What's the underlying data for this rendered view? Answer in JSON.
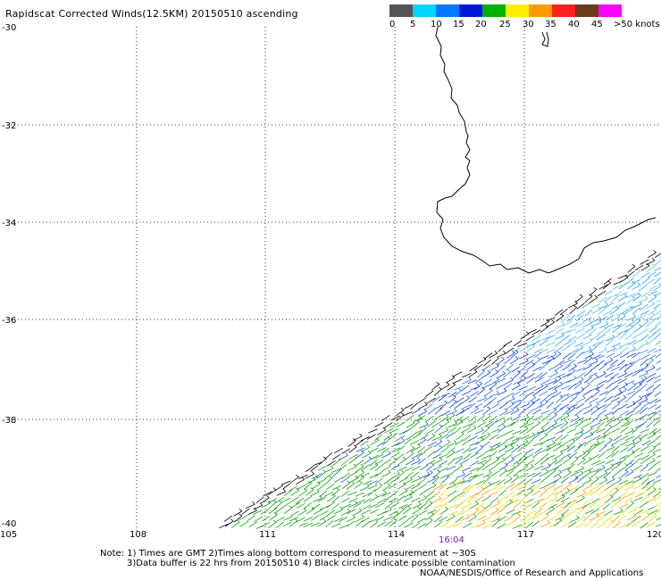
{
  "header": {
    "title": "Rapidscat Corrected Winds(12.5KM) 20150510 ascending"
  },
  "legend": {
    "labels": [
      "0",
      "5",
      "10",
      "15",
      "20",
      "25",
      "30",
      "35",
      "40",
      "45",
      ">50 knots"
    ],
    "colors": [
      "#555555",
      "#00d5ff",
      "#0077ff",
      "#0018d6",
      "#00b000",
      "#ffee00",
      "#ff9a00",
      "#ff2020",
      "#6b3a1a",
      "#ff00ff",
      "#8a00d8"
    ]
  },
  "map": {
    "lon_ticks": [
      "105",
      "108",
      "111",
      "114",
      "117",
      "120"
    ],
    "lat_ticks": [
      "-30",
      "-32",
      "-34",
      "-36",
      "-38",
      "-40"
    ],
    "timestamp": "16:04"
  },
  "notes": {
    "line1": "Note: 1) Times are GMT 2)Times along bottom correspond to measurement at ~30S",
    "line2": "3)Data buffer is 22 hrs from 20150510 4) Black circles indicate possible contamination",
    "credit": "NOAA/NESDIS/Office of Research and Applications"
  }
}
